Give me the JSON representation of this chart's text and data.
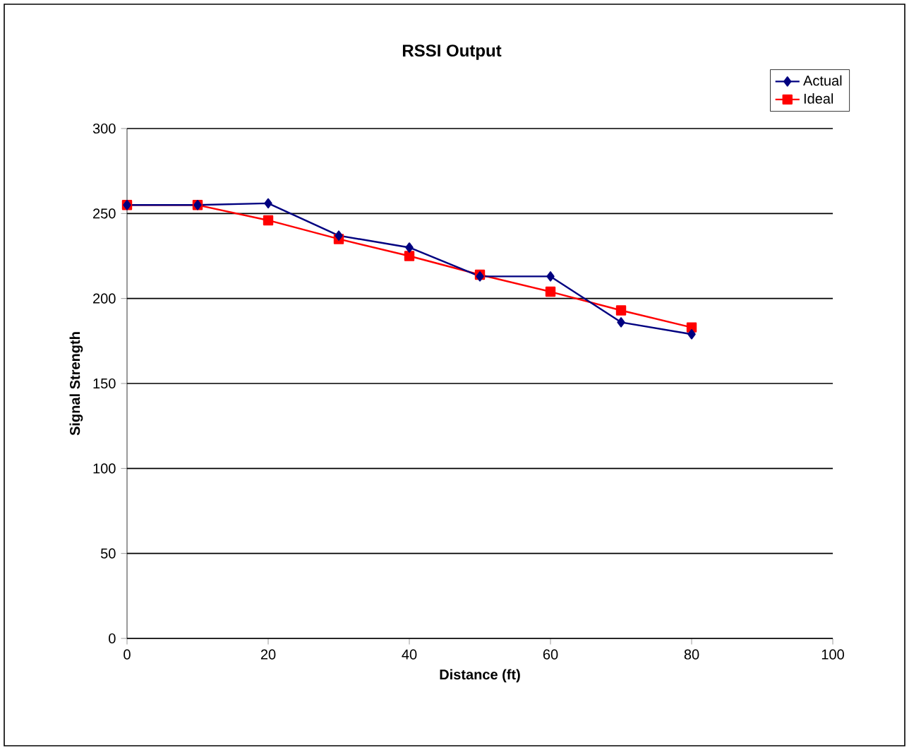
{
  "chart_data": {
    "type": "line",
    "title": "RSSI Output",
    "xlabel": "Distance (ft)",
    "ylabel": "Signal Strength",
    "x": [
      0,
      10,
      20,
      30,
      40,
      50,
      60,
      70,
      80
    ],
    "series": [
      {
        "name": "Actual",
        "color": "#000080",
        "marker": "diamond",
        "values": [
          255,
          255,
          256,
          237,
          230,
          213,
          213,
          186,
          179
        ]
      },
      {
        "name": "Ideal",
        "color": "#ff0000",
        "marker": "square",
        "values": [
          255,
          255,
          246,
          235,
          225,
          214,
          204,
          193,
          183
        ]
      }
    ],
    "xlim": [
      0,
      100
    ],
    "xticks": [
      0,
      20,
      40,
      60,
      80,
      100
    ],
    "ylim": [
      0,
      300
    ],
    "yticks": [
      0,
      50,
      100,
      150,
      200,
      250,
      300
    ],
    "grid": "y",
    "legend": "top right",
    "line_style": "solid"
  }
}
